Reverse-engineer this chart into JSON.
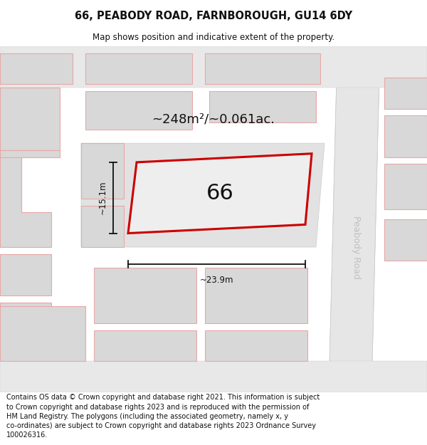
{
  "title": "66, PEABODY ROAD, FARNBOROUGH, GU14 6DY",
  "subtitle": "Map shows position and indicative extent of the property.",
  "footer": "Contains OS data © Crown copyright and database right 2021. This information is subject to Crown copyright and database rights 2023 and is reproduced with the permission of HM Land Registry. The polygons (including the associated geometry, namely x, y co-ordinates) are subject to Crown copyright and database rights 2023 Ordnance Survey 100026316.",
  "area_label": "~248m²/~0.061ac.",
  "property_number": "66",
  "width_label": "~23.9m",
  "height_label": "~15.1m",
  "road_label": "Peabody Road",
  "bg_color": "#f0f0f0",
  "block_color": "#d8d8d8",
  "block_edge": "#e8a8a8",
  "road_fill": "#e0e0e0",
  "property_fill": "#eeeeee",
  "property_edge": "#cc0000",
  "dim_color": "#111111",
  "text_color": "#111111",
  "road_text_color": "#c0c0c0",
  "title_fontsize": 10.5,
  "subtitle_fontsize": 8.5,
  "footer_fontsize": 7.0,
  "area_fontsize": 13,
  "num_fontsize": 22,
  "dim_fontsize": 8.5,
  "road_fontsize": 9
}
